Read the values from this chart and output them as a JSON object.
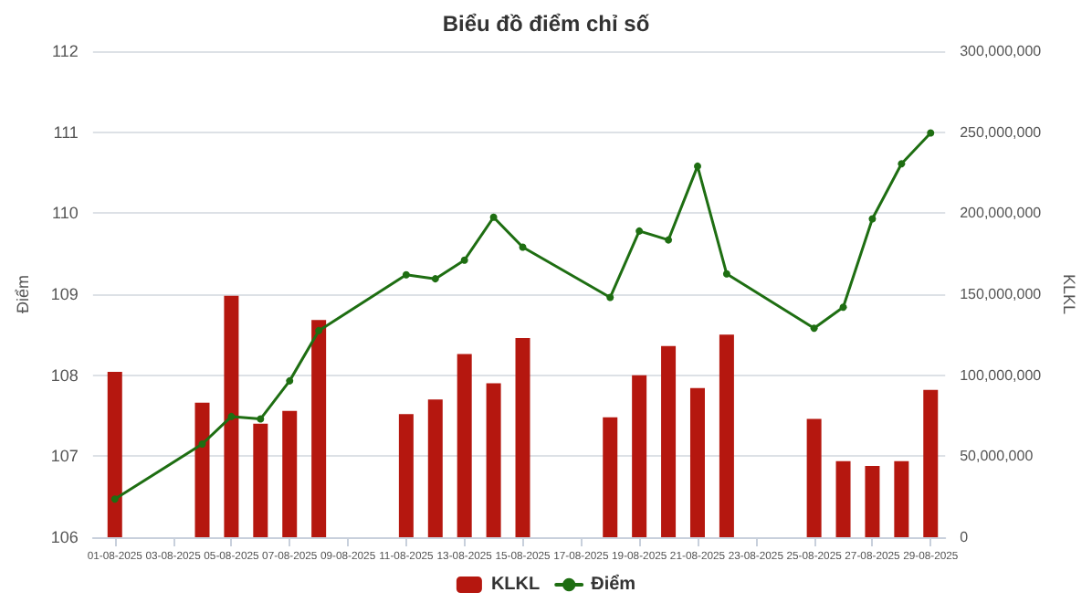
{
  "chart_data": {
    "type": "bar",
    "title": "Biểu đồ điểm chỉ số",
    "ylabel": "Điểm",
    "y2label": "KLKL",
    "x": [
      "2025-08-01",
      "2025-08-04",
      "2025-08-05",
      "2025-08-06",
      "2025-08-07",
      "2025-08-08",
      "2025-08-11",
      "2025-08-12",
      "2025-08-13",
      "2025-08-14",
      "2025-08-15",
      "2025-08-18",
      "2025-08-19",
      "2025-08-20",
      "2025-08-21",
      "2025-08-22",
      "2025-08-25",
      "2025-08-26",
      "2025-08-27",
      "2025-08-28",
      "2025-08-29"
    ],
    "series": [
      {
        "name": "KLKL",
        "axis": "y2",
        "color": "#b5170f",
        "values": [
          102000000,
          83000000,
          149000000,
          70000000,
          78000000,
          134000000,
          76000000,
          85000000,
          113000000,
          95000000,
          123000000,
          74000000,
          100000000,
          118000000,
          92000000,
          125000000,
          73000000,
          47000000,
          44000000,
          47000000,
          91000000
        ]
      },
      {
        "name": "Điểm",
        "type": "line",
        "color": "#1e6e12",
        "values": [
          106.47,
          107.15,
          107.49,
          107.46,
          107.93,
          108.55,
          109.24,
          109.19,
          109.42,
          109.95,
          109.58,
          108.96,
          109.78,
          109.67,
          110.58,
          109.25,
          108.58,
          108.84,
          109.93,
          110.61,
          110.99
        ]
      }
    ],
    "xlim": [
      "2025-07-31T06:00",
      "2025-08-29T12:00"
    ],
    "xticks": [
      {
        "value": "2025-08-01",
        "label": "01-08-2025"
      },
      {
        "value": "2025-08-03",
        "label": "03-08-2025"
      },
      {
        "value": "2025-08-05",
        "label": "05-08-2025"
      },
      {
        "value": "2025-08-07",
        "label": "07-08-2025"
      },
      {
        "value": "2025-08-09",
        "label": "09-08-2025"
      },
      {
        "value": "2025-08-11",
        "label": "11-08-2025"
      },
      {
        "value": "2025-08-13",
        "label": "13-08-2025"
      },
      {
        "value": "2025-08-15",
        "label": "15-08-2025"
      },
      {
        "value": "2025-08-17",
        "label": "17-08-2025"
      },
      {
        "value": "2025-08-19",
        "label": "19-08-2025"
      },
      {
        "value": "2025-08-21",
        "label": "21-08-2025"
      },
      {
        "value": "2025-08-23",
        "label": "23-08-2025"
      },
      {
        "value": "2025-08-25",
        "label": "25-08-2025"
      },
      {
        "value": "2025-08-27",
        "label": "27-08-2025"
      },
      {
        "value": "2025-08-29",
        "label": "29-08-2025"
      }
    ],
    "ylim": [
      106,
      112
    ],
    "yticks": [
      106,
      107,
      108,
      109,
      110,
      111,
      112
    ],
    "y2lim": [
      0,
      300000000
    ],
    "y2ticks": [
      0,
      {
        "value": 50000000,
        "label": "50,000,000"
      },
      {
        "value": 100000000,
        "label": "100,000,000"
      },
      {
        "value": 150000000,
        "label": "150,000,000"
      },
      {
        "value": 200000000,
        "label": "200,000,000"
      },
      {
        "value": 250000000,
        "label": "250,000,000"
      },
      {
        "value": 300000000,
        "label": "300,000,000"
      }
    ],
    "grid": "y",
    "legend": "bottom",
    "marker": "circle",
    "line_style": "solid"
  }
}
